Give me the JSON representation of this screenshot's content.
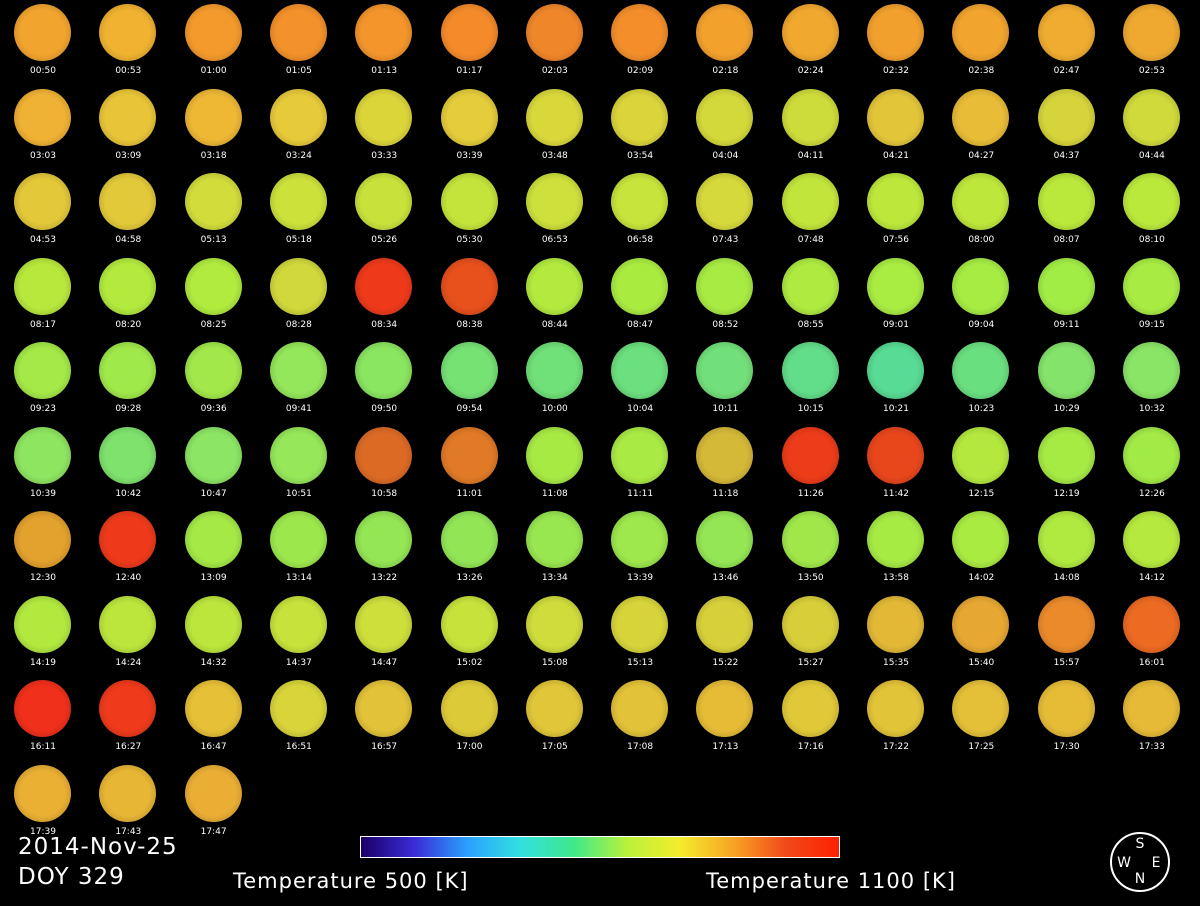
{
  "date": "2014-Nov-25",
  "doy": "DOY 329",
  "colorbar": {
    "min_label": "Temperature 500 [K]",
    "max_label": "Temperature 1100 [K]",
    "colors": [
      "#1a0066",
      "#3b2bd6",
      "#2aa0ff",
      "#32e0e0",
      "#3fe88a",
      "#b7f23a",
      "#f3ec2c",
      "#f6a524",
      "#f04a1a",
      "#ff2000"
    ]
  },
  "compass": {
    "north": "N",
    "south": "S",
    "east": "E",
    "west": "W"
  },
  "frames": [
    {
      "time": "00:50",
      "color": "#f2a52e"
    },
    {
      "time": "00:53",
      "color": "#f0b230"
    },
    {
      "time": "01:00",
      "color": "#f49a2c"
    },
    {
      "time": "01:05",
      "color": "#f3912a"
    },
    {
      "time": "01:13",
      "color": "#f4952b"
    },
    {
      "time": "01:17",
      "color": "#f48a2a"
    },
    {
      "time": "02:03",
      "color": "#f0862a"
    },
    {
      "time": "02:09",
      "color": "#f38e2b"
    },
    {
      "time": "02:18",
      "color": "#f2a12d"
    },
    {
      "time": "02:24",
      "color": "#f1a82f"
    },
    {
      "time": "02:32",
      "color": "#f2a02d"
    },
    {
      "time": "02:38",
      "color": "#f1a42e"
    },
    {
      "time": "02:47",
      "color": "#f0ac30"
    },
    {
      "time": "02:53",
      "color": "#efa930"
    },
    {
      "time": "03:03",
      "color": "#f0b234"
    },
    {
      "time": "03:09",
      "color": "#e8c538"
    },
    {
      "time": "03:18",
      "color": "#eeb835"
    },
    {
      "time": "03:24",
      "color": "#e6ca3a"
    },
    {
      "time": "03:33",
      "color": "#dcd53a"
    },
    {
      "time": "03:39",
      "color": "#e4cc3a"
    },
    {
      "time": "03:48",
      "color": "#d9d83b"
    },
    {
      "time": "03:54",
      "color": "#dbd43b"
    },
    {
      "time": "04:04",
      "color": "#d4d93b"
    },
    {
      "time": "04:11",
      "color": "#cedc3b"
    },
    {
      "time": "04:21",
      "color": "#e3c53a"
    },
    {
      "time": "04:27",
      "color": "#e8bc37"
    },
    {
      "time": "04:37",
      "color": "#d6d43b"
    },
    {
      "time": "04:44",
      "color": "#d0da3b"
    },
    {
      "time": "04:53",
      "color": "#e3c83a"
    },
    {
      "time": "04:58",
      "color": "#e2c93a"
    },
    {
      "time": "05:13",
      "color": "#d2dc3b"
    },
    {
      "time": "05:18",
      "color": "#cde13b"
    },
    {
      "time": "05:26",
      "color": "#c9e23b"
    },
    {
      "time": "05:30",
      "color": "#c4e43b"
    },
    {
      "time": "06:53",
      "color": "#cde03b"
    },
    {
      "time": "06:58",
      "color": "#c6e43b"
    },
    {
      "time": "07:43",
      "color": "#d6d93b"
    },
    {
      "time": "07:48",
      "color": "#c2e53b"
    },
    {
      "time": "07:56",
      "color": "#bde83b"
    },
    {
      "time": "08:00",
      "color": "#bee73b"
    },
    {
      "time": "08:07",
      "color": "#bae93b"
    },
    {
      "time": "08:10",
      "color": "#bbe93b"
    },
    {
      "time": "08:17",
      "color": "#b8e83c"
    },
    {
      "time": "08:20",
      "color": "#b2ea3e"
    },
    {
      "time": "08:25",
      "color": "#b0eb3e"
    },
    {
      "time": "08:28",
      "color": "#d0d83b"
    },
    {
      "time": "08:34",
      "color": "#ee3a1a"
    },
    {
      "time": "08:38",
      "color": "#e8501c"
    },
    {
      "time": "08:44",
      "color": "#b2ea3e"
    },
    {
      "time": "08:47",
      "color": "#aaeb40"
    },
    {
      "time": "08:52",
      "color": "#a8eb42"
    },
    {
      "time": "08:55",
      "color": "#aeea40"
    },
    {
      "time": "09:01",
      "color": "#a9ec42"
    },
    {
      "time": "09:04",
      "color": "#a6ec43"
    },
    {
      "time": "09:11",
      "color": "#a2ed45"
    },
    {
      "time": "09:15",
      "color": "#a8ec43"
    },
    {
      "time": "09:23",
      "color": "#a4e947"
    },
    {
      "time": "09:28",
      "color": "#a0e94a"
    },
    {
      "time": "09:36",
      "color": "#a2e84a"
    },
    {
      "time": "09:41",
      "color": "#94e65a"
    },
    {
      "time": "09:50",
      "color": "#8ae560"
    },
    {
      "time": "09:54",
      "color": "#76e274"
    },
    {
      "time": "10:00",
      "color": "#70e078"
    },
    {
      "time": "10:04",
      "color": "#6cdf7e"
    },
    {
      "time": "10:11",
      "color": "#72e07a"
    },
    {
      "time": "10:15",
      "color": "#62dd8a"
    },
    {
      "time": "10:21",
      "color": "#58db94"
    },
    {
      "time": "10:23",
      "color": "#6adf80"
    },
    {
      "time": "10:29",
      "color": "#84e36a"
    },
    {
      "time": "10:32",
      "color": "#8ae566"
    },
    {
      "time": "10:39",
      "color": "#8ee560"
    },
    {
      "time": "10:42",
      "color": "#7ee26c"
    },
    {
      "time": "10:47",
      "color": "#8ce664"
    },
    {
      "time": "10:51",
      "color": "#96e75a"
    },
    {
      "time": "10:58",
      "color": "#dc6a25"
    },
    {
      "time": "11:01",
      "color": "#e07a26"
    },
    {
      "time": "11:08",
      "color": "#a8ea44"
    },
    {
      "time": "11:11",
      "color": "#aaea44"
    },
    {
      "time": "11:18",
      "color": "#d4b838"
    },
    {
      "time": "11:26",
      "color": "#ec3c1a"
    },
    {
      "time": "11:42",
      "color": "#e8461b"
    },
    {
      "time": "12:15",
      "color": "#b4e83e"
    },
    {
      "time": "12:19",
      "color": "#a6ea44"
    },
    {
      "time": "12:26",
      "color": "#a2ea46"
    },
    {
      "time": "12:30",
      "color": "#e3a12d"
    },
    {
      "time": "12:40",
      "color": "#ee3a1a"
    },
    {
      "time": "13:09",
      "color": "#a4e946"
    },
    {
      "time": "13:14",
      "color": "#9ce84c"
    },
    {
      "time": "13:22",
      "color": "#94e654"
    },
    {
      "time": "13:26",
      "color": "#92e656"
    },
    {
      "time": "13:34",
      "color": "#98e650"
    },
    {
      "time": "13:39",
      "color": "#9ee74c"
    },
    {
      "time": "13:46",
      "color": "#94e654"
    },
    {
      "time": "13:50",
      "color": "#a0e84a"
    },
    {
      "time": "13:58",
      "color": "#a6ea44"
    },
    {
      "time": "14:02",
      "color": "#aaeb42"
    },
    {
      "time": "14:08",
      "color": "#b0ea40"
    },
    {
      "time": "14:12",
      "color": "#b6e93e"
    },
    {
      "time": "14:19",
      "color": "#b2e93f"
    },
    {
      "time": "14:24",
      "color": "#bce63c"
    },
    {
      "time": "14:32",
      "color": "#bce63c"
    },
    {
      "time": "14:37",
      "color": "#c6e23b"
    },
    {
      "time": "14:47",
      "color": "#ccdf3b"
    },
    {
      "time": "15:02",
      "color": "#c6e23b"
    },
    {
      "time": "15:08",
      "color": "#cfdc3b"
    },
    {
      "time": "15:13",
      "color": "#d6d43a"
    },
    {
      "time": "15:22",
      "color": "#d8d03a"
    },
    {
      "time": "15:27",
      "color": "#d8ce3a"
    },
    {
      "time": "15:35",
      "color": "#e2b836"
    },
    {
      "time": "15:40",
      "color": "#e6a832"
    },
    {
      "time": "15:57",
      "color": "#ea8a2a"
    },
    {
      "time": "16:01",
      "color": "#ec6a22"
    },
    {
      "time": "16:11",
      "color": "#f0301a"
    },
    {
      "time": "16:27",
      "color": "#ef3a1b"
    },
    {
      "time": "16:47",
      "color": "#e6c036"
    },
    {
      "time": "16:51",
      "color": "#d8d43a"
    },
    {
      "time": "16:57",
      "color": "#e2c238"
    },
    {
      "time": "17:00",
      "color": "#ddca38"
    },
    {
      "time": "17:05",
      "color": "#e0c638"
    },
    {
      "time": "17:08",
      "color": "#e2c238"
    },
    {
      "time": "17:13",
      "color": "#e6bc36"
    },
    {
      "time": "17:16",
      "color": "#e0c838"
    },
    {
      "time": "17:22",
      "color": "#e2c438"
    },
    {
      "time": "17:25",
      "color": "#e4c038"
    },
    {
      "time": "17:30",
      "color": "#e6bc37"
    },
    {
      "time": "17:33",
      "color": "#e6ba37"
    },
    {
      "time": "17:39",
      "color": "#eab034"
    },
    {
      "time": "17:43",
      "color": "#e8b635"
    },
    {
      "time": "17:47",
      "color": "#eaae34"
    }
  ]
}
